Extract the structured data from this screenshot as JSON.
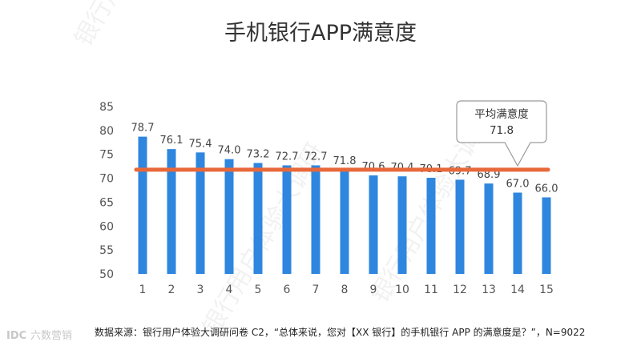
{
  "chart_data": {
    "type": "bar",
    "title": "手机银行APP满意度",
    "categories": [
      "1",
      "2",
      "3",
      "4",
      "5",
      "6",
      "7",
      "8",
      "9",
      "10",
      "11",
      "12",
      "13",
      "14",
      "15"
    ],
    "values": [
      78.7,
      76.1,
      75.4,
      74.0,
      73.2,
      72.7,
      72.7,
      71.8,
      70.6,
      70.4,
      70.1,
      69.7,
      68.9,
      67.0,
      66.0
    ],
    "value_labels": [
      "78.7",
      "76.1",
      "75.4",
      "74.0",
      "73.2",
      "72.7",
      "72.7",
      "71.8",
      "70.6",
      "70.4",
      "70.1",
      "69.7",
      "68.9",
      "67.0",
      "66.0"
    ],
    "ylim": [
      50,
      85
    ],
    "yticks": [
      "50",
      "55",
      "60",
      "65",
      "70",
      "75",
      "80",
      "85"
    ],
    "average": {
      "value": 71.8,
      "label_line1": "平均满意度",
      "label_line2": "71.8"
    },
    "source": "数据来源：银行用户体验大调研问卷 C2，“总体来说，您对【XX 银行】的手机银行 APP 的满意度是？”，N=9022",
    "colors": {
      "bar": "#2e86de",
      "average_line": "#e8683a"
    },
    "grid": false
  },
  "branding": {
    "logo_mark": "IDC",
    "logo_text": "六数营销",
    "watermark_text": "银行用户体验大调研"
  }
}
